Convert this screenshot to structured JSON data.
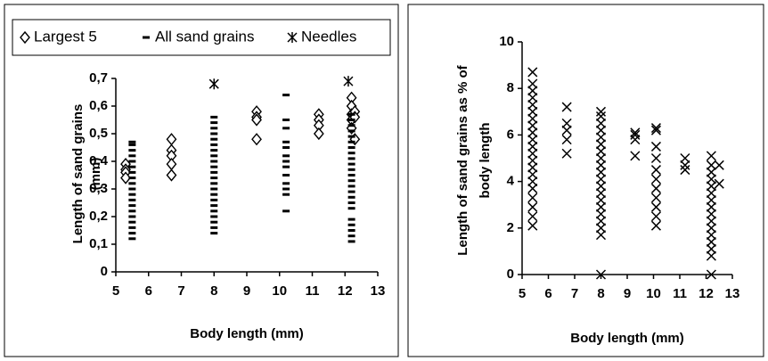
{
  "chart_data": [
    {
      "type": "scatter",
      "y_label": [
        "Length of sand grains",
        "(mm)"
      ],
      "x_label": "Body length (mm)",
      "xlim": [
        5,
        13
      ],
      "xticks": [
        5,
        6,
        7,
        8,
        9,
        10,
        11,
        12,
        13
      ],
      "ylim": [
        0,
        0.7
      ],
      "yticks": [
        0,
        {
          "value": 0.1,
          "label": "0,1"
        },
        {
          "value": 0.2,
          "label": "0,2"
        },
        {
          "value": 0.3,
          "label": "0,3"
        },
        {
          "value": 0.4,
          "label": "0,4"
        },
        {
          "value": 0.5,
          "label": "0,5"
        },
        {
          "value": 0.6,
          "label": "0,6"
        },
        {
          "value": 0.7,
          "label": "0,7"
        }
      ],
      "legend": "top",
      "series": [
        {
          "name": "Largest 5",
          "color": "#000000",
          "marker": "diamond",
          "x": [
            5.3,
            5.3,
            5.3,
            5.3,
            6.7,
            6.7,
            6.7,
            6.7,
            6.7,
            9.3,
            9.3,
            9.3,
            9.3,
            11.2,
            11.2,
            11.2,
            11.2,
            12.2,
            12.2,
            12.2,
            12.2,
            12.2,
            12.3,
            12.3,
            12.3
          ],
          "values": [
            0.39,
            0.37,
            0.36,
            0.34,
            0.48,
            0.44,
            0.42,
            0.39,
            0.35,
            0.58,
            0.56,
            0.55,
            0.48,
            0.57,
            0.55,
            0.53,
            0.5,
            0.63,
            0.6,
            0.57,
            0.55,
            0.52,
            0.58,
            0.56,
            0.48
          ]
        },
        {
          "name": "All sand grains",
          "color": "#000000",
          "marker": "dash",
          "x": [
            5.5,
            5.5,
            5.5,
            5.5,
            5.5,
            5.5,
            5.5,
            5.5,
            5.5,
            5.5,
            5.5,
            5.5,
            5.5,
            5.5,
            5.5,
            5.5,
            5.5,
            5.5,
            5.5,
            8,
            8,
            8,
            8,
            8,
            8,
            8,
            8,
            8,
            8,
            8,
            8,
            8,
            8,
            8,
            8,
            8,
            8,
            8,
            8,
            8,
            8,
            10.2,
            10.2,
            10.2,
            10.2,
            10.2,
            10.2,
            10.2,
            10.2,
            10.2,
            10.2,
            10.2,
            10.2,
            10.2,
            12.2,
            12.2,
            12.2,
            12.2,
            12.2,
            12.2,
            12.2,
            12.2,
            12.2,
            12.2,
            12.2,
            12.2,
            12.2,
            12.2,
            12.2,
            12.2,
            12.2,
            12.2,
            12.2,
            12.2,
            12.2,
            12.2,
            12.2
          ],
          "values": [
            0.12,
            0.14,
            0.16,
            0.18,
            0.2,
            0.22,
            0.24,
            0.26,
            0.28,
            0.3,
            0.32,
            0.34,
            0.36,
            0.38,
            0.4,
            0.42,
            0.44,
            0.46,
            0.47,
            0.14,
            0.16,
            0.18,
            0.2,
            0.22,
            0.24,
            0.26,
            0.28,
            0.3,
            0.32,
            0.34,
            0.36,
            0.38,
            0.4,
            0.42,
            0.44,
            0.46,
            0.48,
            0.5,
            0.52,
            0.54,
            0.56,
            0.22,
            0.28,
            0.3,
            0.32,
            0.35,
            0.38,
            0.4,
            0.42,
            0.45,
            0.47,
            0.52,
            0.55,
            0.64,
            0.11,
            0.13,
            0.15,
            0.17,
            0.19,
            0.23,
            0.25,
            0.27,
            0.29,
            0.31,
            0.33,
            0.35,
            0.37,
            0.39,
            0.41,
            0.43,
            0.45,
            0.47,
            0.49,
            0.51,
            0.53,
            0.55,
            0.57
          ]
        },
        {
          "name": "Needles",
          "color": "#000000",
          "marker": "asterisk",
          "x": [
            8,
            12.1
          ],
          "values": [
            0.68,
            0.69
          ]
        }
      ]
    },
    {
      "type": "scatter",
      "y_label": [
        "Length of sand grains as % of",
        "body length"
      ],
      "x_label": "Body length (mm)",
      "xlim": [
        5,
        13
      ],
      "xticks": [
        5,
        6,
        7,
        8,
        9,
        10,
        11,
        12,
        13
      ],
      "ylim": [
        0,
        10
      ],
      "yticks": [
        0,
        2,
        4,
        6,
        8,
        10
      ],
      "series": [
        {
          "color": "#000000",
          "marker": "x",
          "x": [
            5.4,
            5.4,
            5.4,
            5.4,
            5.4,
            5.4,
            5.4,
            5.4,
            5.4,
            5.4,
            5.4,
            5.4,
            5.4,
            5.4,
            5.4,
            5.4,
            5.4,
            5.4,
            5.4,
            5.4,
            5.4,
            6.7,
            6.7,
            6.7,
            6.7,
            6.7,
            8,
            8,
            8,
            8,
            8,
            8,
            8,
            8,
            8,
            8,
            8,
            8,
            8,
            8,
            8,
            8,
            8,
            8,
            8,
            8,
            9.3,
            9.3,
            9.3,
            9.3,
            10.1,
            10.1,
            10.1,
            10.1,
            10.1,
            10.1,
            10.1,
            10.1,
            10.1,
            10.1,
            10.1,
            11.2,
            11.2,
            11.2,
            12.2,
            12.2,
            12.2,
            12.2,
            12.2,
            12.2,
            12.2,
            12.2,
            12.2,
            12.2,
            12.2,
            12.2,
            12.2,
            12.2,
            12.2,
            12.2,
            12.5,
            12.5
          ],
          "values": [
            2.1,
            2.5,
            2.9,
            3.3,
            3.7,
            4.0,
            4.3,
            4.6,
            4.9,
            5.2,
            5.5,
            5.8,
            6.1,
            6.4,
            6.7,
            7.0,
            7.3,
            7.6,
            7.9,
            8.2,
            8.7,
            5.2,
            5.8,
            6.2,
            6.5,
            7.2,
            0,
            1.7,
            2.0,
            2.3,
            2.6,
            2.9,
            3.2,
            3.5,
            3.8,
            4.1,
            4.4,
            4.7,
            5.0,
            5.3,
            5.6,
            5.9,
            6.2,
            6.5,
            6.8,
            7.0,
            5.1,
            5.8,
            6.0,
            6.1,
            2.1,
            2.5,
            2.9,
            3.3,
            3.7,
            4.1,
            4.5,
            5.0,
            5.5,
            6.2,
            6.3,
            4.5,
            4.7,
            5.0,
            0,
            0.8,
            1.1,
            1.4,
            1.7,
            2.0,
            2.3,
            2.6,
            2.9,
            3.2,
            3.5,
            3.8,
            4.1,
            4.4,
            4.7,
            5.1,
            3.9,
            4.7
          ]
        }
      ]
    }
  ]
}
